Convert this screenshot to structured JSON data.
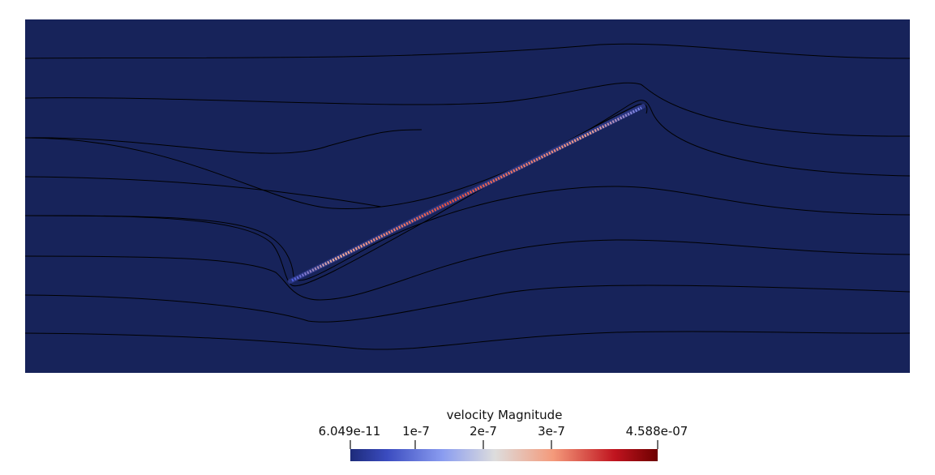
{
  "colors": {
    "background_field": "#17235a",
    "streamline": "#000000",
    "page": "#ffffff"
  },
  "colorbar": {
    "title": "velocity Magnitude",
    "min_label": "6.049e-11",
    "max_label": "4.588e-07",
    "ticks": [
      "1e-7",
      "2e-7",
      "3e-7"
    ],
    "colormap": "cool-to-warm",
    "stops": [
      "#3b4cc0",
      "#8a9cf0",
      "#dddddd",
      "#f49a7b",
      "#b40426",
      "#7a0000"
    ]
  }
}
